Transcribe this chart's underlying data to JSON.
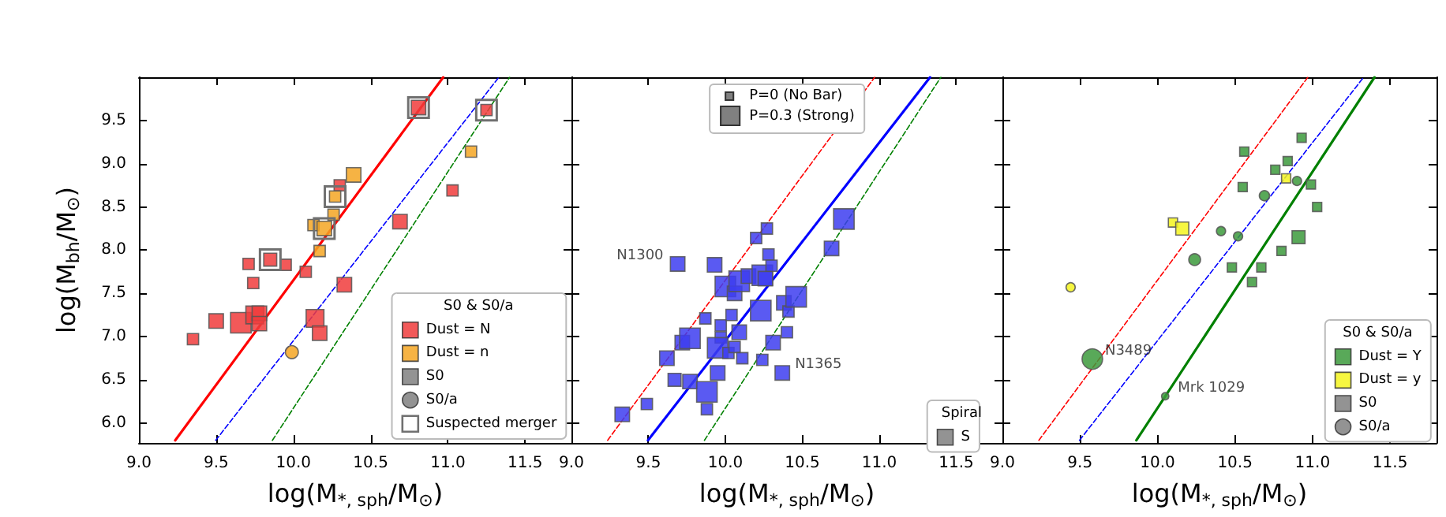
{
  "chart_data": [
    {
      "type": "bubble",
      "xlabel": "log(M$_{*, sph}$/M$_{⊙}$)",
      "ylabel": "log(M$_{bh}$/M$_{⊙}$)",
      "legend_title": "S0 & S0/a",
      "legend": "bottom right",
      "xlim": [
        9.0,
        11.8
      ],
      "ylim": [
        5.77,
        10.0
      ],
      "xticks": [
        {
          "value": 9,
          "label": "9.0"
        },
        9.5,
        {
          "value": 10,
          "label": "10.0"
        },
        10.5,
        {
          "value": 11,
          "label": "11.0"
        },
        11.5
      ],
      "yticks": [
        {
          "value": 6,
          "label": "6.0"
        },
        6.5,
        {
          "value": 7,
          "label": "7.0"
        },
        7.5,
        {
          "value": 8,
          "label": "8.0"
        },
        8.5,
        {
          "value": 9,
          "label": "9.0"
        },
        9.5
      ],
      "series": [
        {
          "type": "line",
          "color": "#ff0000",
          "line_style": "solid",
          "marker": "none",
          "x": [
            9.235,
            10.97
          ],
          "values": [
            5.8,
            10.0
          ]
        },
        {
          "type": "line",
          "color": "#0000ff",
          "line_style": "dashed",
          "marker": "none",
          "x": [
            9.497,
            11.33
          ],
          "values": [
            5.8,
            10.0
          ]
        },
        {
          "type": "line",
          "color": "#008000",
          "line_style": "dashed",
          "marker": "none",
          "x": [
            9.864,
            11.4
          ],
          "values": [
            5.8,
            10.0
          ]
        },
        {
          "name": "Dust = N",
          "color": "#f03c3c",
          "marker": "square",
          "x": [
            9.35,
            9.5,
            9.66,
            9.75,
            9.78,
            9.78,
            9.71,
            9.74,
            9.85,
            9.95,
            10.08,
            10.14,
            10.17,
            10.33,
            10.3,
            10.69,
            10.81,
            11.03,
            11.25
          ],
          "values": [
            6.97,
            7.18,
            7.16,
            7.25,
            7.27,
            7.15,
            7.84,
            7.62,
            7.89,
            7.83,
            7.75,
            7.21,
            7.04,
            7.6,
            8.75,
            8.33,
            9.65,
            8.69,
            9.62
          ],
          "sizes": [
            0.3,
            0.5,
            1,
            0.75,
            0.5,
            0.5,
            0.3,
            0.3,
            0.4,
            0.3,
            0.3,
            0.75,
            0.5,
            0.5,
            0.3,
            0.5,
            0.5,
            0.3,
            0.3
          ]
        },
        {
          "name": "Dust = n",
          "color": "#f5a623",
          "marker": "square",
          "x": [
            10.13,
            10.2,
            10.17,
            10.26,
            10.27,
            10.39,
            11.15
          ],
          "values": [
            8.29,
            8.25,
            7.99,
            8.41,
            8.62,
            8.87,
            9.14
          ],
          "sizes": [
            0.3,
            0.5,
            0.3,
            0.3,
            0.3,
            0.5,
            0.3
          ]
        },
        {
          "color": "#f5a623",
          "marker": "circle",
          "x": [
            9.99
          ],
          "values": [
            6.82
          ],
          "sizes": [
            0.4
          ]
        },
        {
          "name": "S0",
          "color": "#808080",
          "marker": "square"
        },
        {
          "name": "S0/a",
          "color": "#808080",
          "marker": "circle"
        },
        {
          "name": "Suspected merger",
          "type": "scatter",
          "color": "#707070",
          "marker": "square",
          "x": [
            9.85,
            10.2,
            10.27,
            10.81,
            11.25
          ],
          "values": [
            7.89,
            8.25,
            8.62,
            9.65,
            9.62
          ]
        }
      ]
    },
    {
      "type": "bubble",
      "xlabel": "log(M$_{*, sph}$/M$_{⊙}$)",
      "legend_title": "Spiral",
      "legend": "bottom right",
      "tick_labels": "x",
      "xlim": [
        9.0,
        11.8
      ],
      "ylim": [
        5.77,
        10.0
      ],
      "xticks": [
        {
          "value": 9,
          "label": "9.0"
        },
        9.5,
        {
          "value": 10,
          "label": "10.0"
        },
        10.5,
        {
          "value": 11,
          "label": "11.0"
        },
        11.5
      ],
      "yticks": [
        6,
        6.5,
        7,
        7.5,
        8,
        8.5,
        9,
        9.5
      ],
      "annotations": [
        "P=0 (No Bar)",
        "P=0.3 (Strong)",
        {
          "text": "N1300",
          "x": 9.69,
          "y": 7.84
        },
        {
          "text": "N1365",
          "x": 10.37,
          "y": 6.58
        }
      ],
      "series": [
        {
          "type": "line",
          "color": "#ff0000",
          "line_style": "dashed",
          "marker": "none",
          "x": [
            9.235,
            10.97
          ],
          "values": [
            5.8,
            10.0
          ]
        },
        {
          "type": "line",
          "color": "#0000ff",
          "line_style": "solid",
          "marker": "none",
          "x": [
            9.497,
            11.33
          ],
          "values": [
            5.8,
            10.0
          ]
        },
        {
          "type": "line",
          "color": "#008000",
          "line_style": "dashed",
          "marker": "none",
          "x": [
            9.864,
            11.4
          ],
          "values": [
            5.8,
            10.0
          ]
        },
        {
          "color": "#3d3df0",
          "marker": "square",
          "x": [
            9.33,
            9.49,
            9.62,
            9.67,
            9.69,
            9.72,
            9.77,
            9.77,
            9.88,
            9.88,
            9.87,
            9.93,
            9.97,
            9.97,
            9.95,
            9.95,
            10.0,
            10.02,
            10.04,
            10.06,
            10.06,
            10.09,
            10.09,
            10.11,
            10.15,
            10.2,
            10.23,
            10.24,
            10.27,
            10.28,
            10.24,
            10.26,
            10.3,
            10.31,
            10.37,
            10.38,
            10.4,
            10.41,
            10.46,
            10.69,
            10.77
          ],
          "values": [
            6.1,
            6.22,
            6.75,
            6.5,
            7.84,
            6.93,
            6.98,
            6.48,
            6.36,
            6.16,
            7.21,
            7.83,
            7.13,
            6.99,
            6.87,
            6.58,
            7.58,
            6.81,
            7.25,
            6.88,
            7.5,
            7.64,
            7.05,
            6.75,
            7.7,
            8.14,
            7.3,
            6.73,
            8.25,
            7.95,
            7.71,
            7.67,
            7.82,
            6.93,
            6.58,
            7.39,
            7.05,
            7.29,
            7.46,
            8.02,
            8.36
          ],
          "sizes": [
            0.5,
            0.3,
            0.5,
            0.4,
            0.5,
            0.5,
            1,
            0.5,
            1,
            0.3,
            0.3,
            0.5,
            0.3,
            0.3,
            1,
            0.5,
            1,
            0.3,
            0.3,
            0.3,
            0.5,
            1,
            0.5,
            0.3,
            0.5,
            0.3,
            1,
            0.3,
            0.3,
            0.3,
            1,
            0.5,
            0.3,
            0.5,
            0.5,
            0.5,
            0.3,
            0.3,
            1,
            0.5,
            1
          ]
        },
        {
          "name": "S",
          "color": "#808080",
          "marker": "square"
        }
      ]
    },
    {
      "type": "bubble",
      "xlabel": "log(M$_{*, sph}$/M$_{⊙}$)",
      "legend_title": "S0 & S0/a",
      "legend": "bottom right",
      "tick_labels": "x",
      "xlim": [
        9.0,
        11.8
      ],
      "ylim": [
        5.77,
        10.0
      ],
      "xticks": [
        {
          "value": 9,
          "label": "9.0"
        },
        9.5,
        {
          "value": 10,
          "label": "10.0"
        },
        10.5,
        {
          "value": 11,
          "label": "11.0"
        },
        11.5
      ],
      "yticks": [
        6,
        6.5,
        7,
        7.5,
        8,
        8.5,
        9,
        9.5
      ],
      "annotations": [
        {
          "text": "N3489",
          "x": 9.58,
          "y": 6.74
        },
        {
          "text": "Mrk 1029",
          "x": 10.05,
          "y": 6.31
        }
      ],
      "series": [
        {
          "type": "line",
          "color": "#ff0000",
          "line_style": "dashed",
          "marker": "none",
          "x": [
            9.235,
            10.97
          ],
          "values": [
            5.8,
            10.0
          ]
        },
        {
          "type": "line",
          "color": "#0000ff",
          "line_style": "dashed",
          "marker": "none",
          "x": [
            9.497,
            11.33
          ],
          "values": [
            5.8,
            10.0
          ]
        },
        {
          "type": "line",
          "color": "#008000",
          "line_style": "solid",
          "marker": "none",
          "x": [
            9.864,
            11.4
          ],
          "values": [
            5.8,
            10.0
          ]
        },
        {
          "name": "Dust = Y",
          "color": "#3c9a3c",
          "marker": "square",
          "x": [
            10.56,
            10.93,
            10.76,
            10.84,
            10.55,
            10.99,
            11.03,
            10.91,
            10.8,
            10.67,
            10.48,
            10.61
          ],
          "values": [
            9.14,
            9.3,
            8.93,
            9.03,
            8.73,
            8.76,
            8.5,
            8.15,
            7.99,
            7.8,
            7.8,
            7.63
          ],
          "sizes": [
            0.2,
            0.2,
            0.2,
            0.2,
            0.2,
            0.2,
            0.2,
            0.4,
            0.2,
            0.2,
            0.2,
            0.2
          ]
        },
        {
          "color": "#3c9a3c",
          "marker": "circle",
          "x": [
            10.9,
            10.69,
            10.41,
            10.52,
            10.24,
            9.58,
            10.05
          ],
          "values": [
            8.8,
            8.63,
            8.22,
            8.16,
            7.89,
            6.74,
            6.31
          ],
          "sizes": [
            0.2,
            0.25,
            0.2,
            0.2,
            0.33,
            1,
            0.13
          ]
        },
        {
          "name": "Dust = y",
          "color": "#f5f51e",
          "marker": "square",
          "x": [
            10.1,
            10.16,
            10.83
          ],
          "values": [
            8.32,
            8.25,
            8.83
          ],
          "sizes": [
            0.2,
            0.4,
            0.2
          ]
        },
        {
          "color": "#f5f51e",
          "marker": "circle",
          "x": [
            9.44
          ],
          "values": [
            7.57
          ],
          "sizes": [
            0.2
          ]
        },
        {
          "name": "S0",
          "color": "#808080",
          "marker": "square"
        },
        {
          "name": "S0/a",
          "color": "#808080",
          "marker": "circle"
        }
      ]
    }
  ]
}
